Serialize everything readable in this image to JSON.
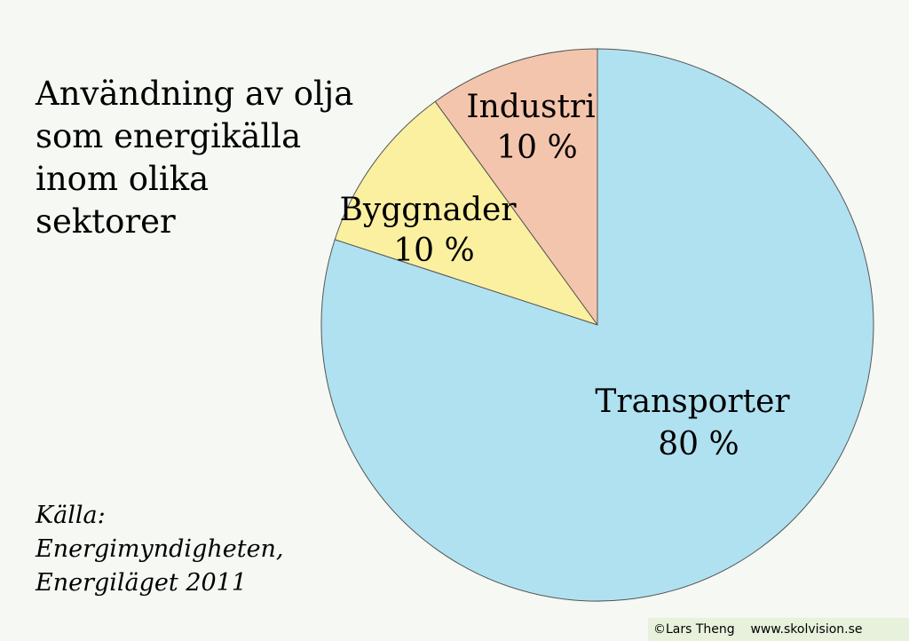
{
  "title_lines": [
    "Användning av olja",
    "som energikälla",
    "inom olika",
    "sektorer"
  ],
  "source_lines": [
    "Källa:",
    "Energimyndigheten,",
    "Energiläget 2011"
  ],
  "credit": "©Lars Theng    www.skolvision.se",
  "chart_data": {
    "type": "pie",
    "title": "Användning av olja som energikälla inom olika sektorer",
    "slices": [
      {
        "label": "Industri",
        "value_label": "10 %",
        "value": 10,
        "color": "#f4c5ad"
      },
      {
        "label": "Byggnader",
        "value_label": "10 %",
        "value": 10,
        "color": "#fbf0a0"
      },
      {
        "label": "Transporter",
        "value_label": "80 %",
        "value": 80,
        "color": "#b0e1f0"
      }
    ],
    "legend": "none"
  }
}
